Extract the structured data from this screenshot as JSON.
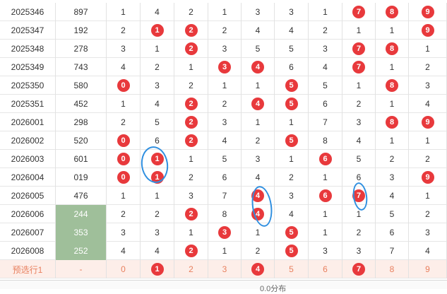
{
  "colors": {
    "ball": "#e8393c",
    "green_cell": "#9fbf9a",
    "highlight_row": "#fdeee9",
    "highlight_text": "#e8805f",
    "annotation": "#2f8fe0"
  },
  "annotation_note": "blue hand-drawn ovals circle highlighted balls",
  "rows": [
    {
      "period": "2025346",
      "num": "897",
      "cells": [
        {
          "v": "1"
        },
        {
          "v": "4"
        },
        {
          "v": "2"
        },
        {
          "v": "1"
        },
        {
          "v": "3"
        },
        {
          "v": "3"
        },
        {
          "v": "1"
        },
        {
          "v": "7",
          "ball": true
        },
        {
          "v": "8",
          "ball": true
        },
        {
          "v": "9",
          "ball": true
        }
      ]
    },
    {
      "period": "2025347",
      "num": "192",
      "cells": [
        {
          "v": "2"
        },
        {
          "v": "1",
          "ball": true
        },
        {
          "v": "2",
          "ball": true
        },
        {
          "v": "2"
        },
        {
          "v": "4"
        },
        {
          "v": "4"
        },
        {
          "v": "2"
        },
        {
          "v": "1"
        },
        {
          "v": "1"
        },
        {
          "v": "9",
          "ball": true
        }
      ]
    },
    {
      "period": "2025348",
      "num": "278",
      "cells": [
        {
          "v": "3"
        },
        {
          "v": "1"
        },
        {
          "v": "2",
          "ball": true
        },
        {
          "v": "3"
        },
        {
          "v": "5"
        },
        {
          "v": "5"
        },
        {
          "v": "3"
        },
        {
          "v": "7",
          "ball": true
        },
        {
          "v": "8",
          "ball": true
        },
        {
          "v": "1"
        }
      ]
    },
    {
      "period": "2025349",
      "num": "743",
      "cells": [
        {
          "v": "4"
        },
        {
          "v": "2"
        },
        {
          "v": "1"
        },
        {
          "v": "3",
          "ball": true
        },
        {
          "v": "4",
          "ball": true
        },
        {
          "v": "6"
        },
        {
          "v": "4"
        },
        {
          "v": "7",
          "ball": true
        },
        {
          "v": "1"
        },
        {
          "v": "2"
        }
      ]
    },
    {
      "period": "2025350",
      "num": "580",
      "cells": [
        {
          "v": "0",
          "ball": true
        },
        {
          "v": "3"
        },
        {
          "v": "2"
        },
        {
          "v": "1"
        },
        {
          "v": "1"
        },
        {
          "v": "5",
          "ball": true
        },
        {
          "v": "5"
        },
        {
          "v": "1"
        },
        {
          "v": "8",
          "ball": true
        },
        {
          "v": "3"
        }
      ]
    },
    {
      "period": "2025351",
      "num": "452",
      "cells": [
        {
          "v": "1"
        },
        {
          "v": "4"
        },
        {
          "v": "2",
          "ball": true
        },
        {
          "v": "2"
        },
        {
          "v": "4",
          "ball": true
        },
        {
          "v": "5",
          "ball": true
        },
        {
          "v": "6"
        },
        {
          "v": "2"
        },
        {
          "v": "1"
        },
        {
          "v": "4"
        }
      ]
    },
    {
      "period": "2026001",
      "num": "298",
      "cells": [
        {
          "v": "2"
        },
        {
          "v": "5"
        },
        {
          "v": "2",
          "ball": true
        },
        {
          "v": "3"
        },
        {
          "v": "1"
        },
        {
          "v": "1"
        },
        {
          "v": "7"
        },
        {
          "v": "3"
        },
        {
          "v": "8",
          "ball": true
        },
        {
          "v": "9",
          "ball": true
        }
      ]
    },
    {
      "period": "2026002",
      "num": "520",
      "cells": [
        {
          "v": "0",
          "ball": true
        },
        {
          "v": "6"
        },
        {
          "v": "2",
          "ball": true
        },
        {
          "v": "4"
        },
        {
          "v": "2"
        },
        {
          "v": "5",
          "ball": true
        },
        {
          "v": "8"
        },
        {
          "v": "4"
        },
        {
          "v": "1"
        },
        {
          "v": "1"
        }
      ]
    },
    {
      "period": "2026003",
      "num": "601",
      "cells": [
        {
          "v": "0",
          "ball": true
        },
        {
          "v": "1",
          "ball": true
        },
        {
          "v": "1"
        },
        {
          "v": "5"
        },
        {
          "v": "3"
        },
        {
          "v": "1"
        },
        {
          "v": "6",
          "ball": true
        },
        {
          "v": "5"
        },
        {
          "v": "2"
        },
        {
          "v": "2"
        }
      ]
    },
    {
      "period": "2026004",
      "num": "019",
      "cells": [
        {
          "v": "0",
          "ball": true
        },
        {
          "v": "1",
          "ball": true
        },
        {
          "v": "2"
        },
        {
          "v": "6"
        },
        {
          "v": "4"
        },
        {
          "v": "2"
        },
        {
          "v": "1"
        },
        {
          "v": "6"
        },
        {
          "v": "3"
        },
        {
          "v": "9",
          "ball": true
        }
      ]
    },
    {
      "period": "2026005",
      "num": "476",
      "cells": [
        {
          "v": "1"
        },
        {
          "v": "1"
        },
        {
          "v": "3"
        },
        {
          "v": "7"
        },
        {
          "v": "4",
          "ball": true
        },
        {
          "v": "3"
        },
        {
          "v": "6",
          "ball": true
        },
        {
          "v": "7",
          "ball": true
        },
        {
          "v": "4"
        },
        {
          "v": "1"
        }
      ]
    },
    {
      "period": "2026006",
      "num": "244",
      "green": true,
      "cells": [
        {
          "v": "2"
        },
        {
          "v": "2"
        },
        {
          "v": "2",
          "ball": true
        },
        {
          "v": "8"
        },
        {
          "v": "4",
          "ball": true
        },
        {
          "v": "4"
        },
        {
          "v": "1"
        },
        {
          "v": "1"
        },
        {
          "v": "5"
        },
        {
          "v": "2"
        }
      ]
    },
    {
      "period": "2026007",
      "num": "353",
      "green": true,
      "cells": [
        {
          "v": "3"
        },
        {
          "v": "3"
        },
        {
          "v": "1"
        },
        {
          "v": "3",
          "ball": true
        },
        {
          "v": "1"
        },
        {
          "v": "5",
          "ball": true
        },
        {
          "v": "1"
        },
        {
          "v": "2"
        },
        {
          "v": "6"
        },
        {
          "v": "3"
        }
      ]
    },
    {
      "period": "2026008",
      "num": "252",
      "green": true,
      "cells": [
        {
          "v": "4"
        },
        {
          "v": "4"
        },
        {
          "v": "2",
          "ball": true
        },
        {
          "v": "1"
        },
        {
          "v": "2"
        },
        {
          "v": "5",
          "ball": true
        },
        {
          "v": "3"
        },
        {
          "v": "3"
        },
        {
          "v": "7"
        },
        {
          "v": "4"
        }
      ]
    },
    {
      "period": "预选行1",
      "num": "-",
      "highlight": true,
      "cells": [
        {
          "v": "0"
        },
        {
          "v": "1",
          "ball": true
        },
        {
          "v": "2"
        },
        {
          "v": "3"
        },
        {
          "v": "4",
          "ball": true
        },
        {
          "v": "5"
        },
        {
          "v": "6"
        },
        {
          "v": "7",
          "ball": true
        },
        {
          "v": "8"
        },
        {
          "v": "9"
        }
      ]
    }
  ],
  "footer": {
    "text": "0.0分布"
  }
}
